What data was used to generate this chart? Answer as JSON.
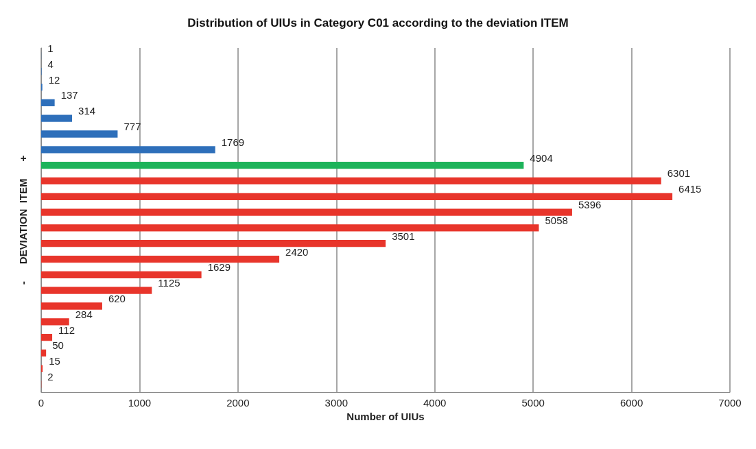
{
  "chart_data": {
    "type": "bar",
    "orientation": "horizontal",
    "title": "Distribution of UIUs in Category C01 according to the deviation ITEM",
    "xlabel": "Number of UIUs",
    "ylabel": "-      DEVIATION  ITEM      +",
    "categories": [
      null,
      null,
      null,
      null,
      null,
      null,
      null,
      null,
      null,
      null,
      null,
      null,
      null,
      null,
      null,
      null,
      null,
      null,
      null,
      null,
      null,
      null
    ],
    "values": [
      1,
      4,
      12,
      137,
      314,
      777,
      1769,
      4904,
      6301,
      6415,
      5396,
      5058,
      3501,
      2420,
      1629,
      1125,
      620,
      284,
      112,
      50,
      15,
      2
    ],
    "colors": [
      "#2e6fba",
      "#2e6fba",
      "#2e6fba",
      "#2e6fba",
      "#2e6fba",
      "#2e6fba",
      "#2e6fba",
      "#1db35a",
      "#e8352b",
      "#e8352b",
      "#e8352b",
      "#e8352b",
      "#e8352b",
      "#e8352b",
      "#e8352b",
      "#e8352b",
      "#e8352b",
      "#e8352b",
      "#e8352b",
      "#e8352b",
      "#e8352b",
      "#e8352b"
    ],
    "xlim": [
      0,
      7000
    ],
    "xticks": [
      0,
      1000,
      2000,
      3000,
      4000,
      5000,
      6000,
      7000
    ],
    "grid": "x",
    "data_labels": true
  }
}
